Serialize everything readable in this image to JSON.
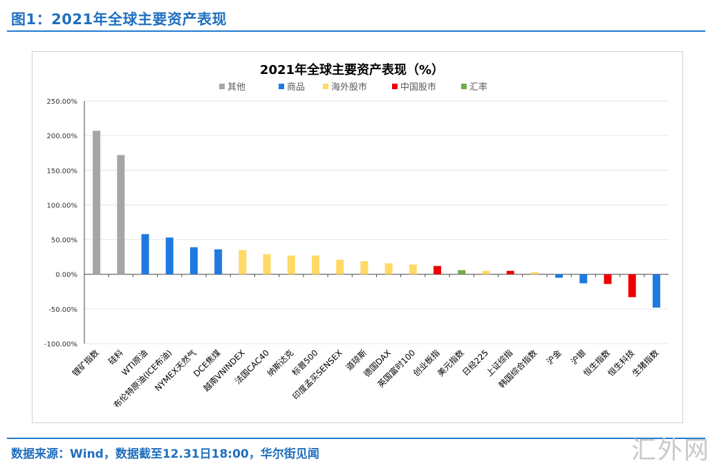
{
  "header": {
    "figure_title": "图1：2021年全球主要资产表现"
  },
  "footer": {
    "source": "数据来源：Wind，数据截至12.31日18:00，华尔街见闻"
  },
  "watermark": {
    "text": "汇外网"
  },
  "colors": {
    "其他": "#a6a6a6",
    "商品": "#1f7ae0",
    "海外股市": "#ffd966",
    "中国股市": "#ee0000",
    "汇率": "#70ad47"
  },
  "chart_data": {
    "type": "bar",
    "title": "2021年全球主要资产表现（%）",
    "xlabel": "",
    "ylabel": "",
    "ylim": [
      -100,
      250
    ],
    "yticks": [
      -100,
      -50,
      0,
      50,
      100,
      150,
      200,
      250
    ],
    "ytick_labels": [
      "-100.00%",
      "-50.00%",
      "0.00%",
      "50.00%",
      "100.00%",
      "150.00%",
      "200.00%",
      "250.00%"
    ],
    "grid": true,
    "legend_position": "top",
    "legend": [
      "其他",
      "商品",
      "海外股市",
      "中国股市",
      "汇率"
    ],
    "categories": [
      "锂矿指数",
      "硅料",
      "WTI原油",
      "布伦特原油(ICE布油)",
      "NYMEX天然气",
      "DCE焦煤",
      "越南VNINDEX",
      "法国CAC40",
      "纳斯达克",
      "标普500",
      "印度孟买SENSEX",
      "道琼斯",
      "德国DAX",
      "英国富时100",
      "创业板指",
      "美元指数",
      "日经225",
      "上证综指",
      "韩国综合指数",
      "沪金",
      "沪银",
      "恒生指数",
      "恒生科技",
      "生猪指数"
    ],
    "values": [
      207,
      172,
      58,
      53,
      39,
      36,
      35,
      29,
      27,
      27,
      21,
      19,
      16,
      14,
      12,
      6,
      5,
      5,
      3,
      -5,
      -13,
      -14,
      -33,
      -48
    ],
    "groups": [
      "其他",
      "其他",
      "商品",
      "商品",
      "商品",
      "商品",
      "海外股市",
      "海外股市",
      "海外股市",
      "海外股市",
      "海外股市",
      "海外股市",
      "海外股市",
      "海外股市",
      "中国股市",
      "汇率",
      "海外股市",
      "中国股市",
      "海外股市",
      "商品",
      "商品",
      "中国股市",
      "中国股市",
      "商品"
    ]
  }
}
